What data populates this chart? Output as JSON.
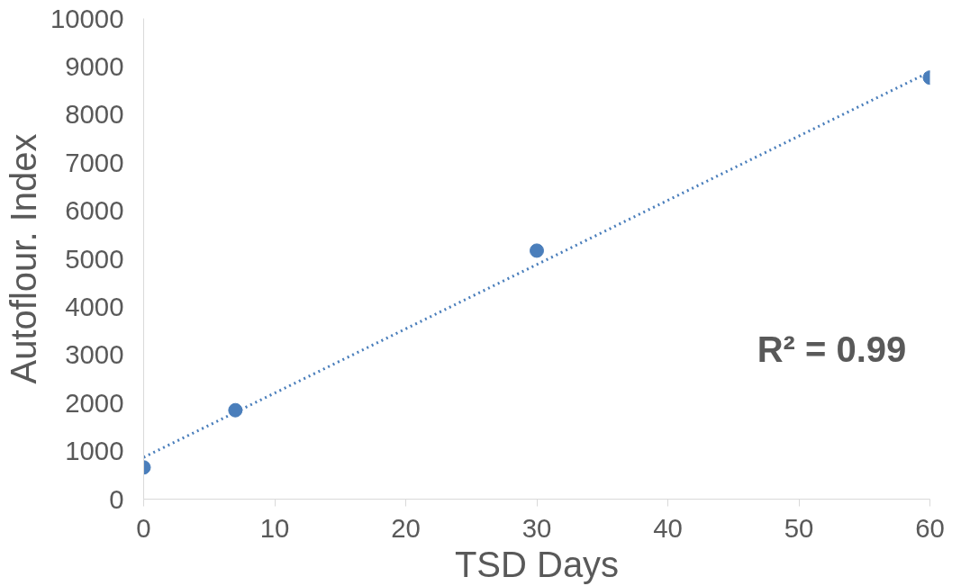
{
  "chart_data": {
    "type": "scatter",
    "xlabel": "TSD Days",
    "ylabel": "Autoflour. Index",
    "xlim": [
      0,
      60
    ],
    "xticks": [
      0,
      10,
      20,
      30,
      40,
      50,
      60
    ],
    "ylim": [
      0,
      10000
    ],
    "yticks": [
      0,
      1000,
      2000,
      3000,
      4000,
      5000,
      6000,
      7000,
      8000,
      9000,
      10000
    ],
    "grid": false,
    "series": [
      {
        "color": "#4a7ebb",
        "marker": "circle",
        "x": [
          0,
          7,
          30,
          60
        ],
        "values": [
          660,
          1850,
          5170,
          8770
        ]
      },
      {
        "type": "line",
        "color": "#4a7ebb",
        "marker": "none",
        "line_style": "dotted",
        "x": [
          0,
          60
        ],
        "values": [
          870,
          8890
        ]
      }
    ],
    "annotations": [
      "R² = 0.99"
    ]
  }
}
